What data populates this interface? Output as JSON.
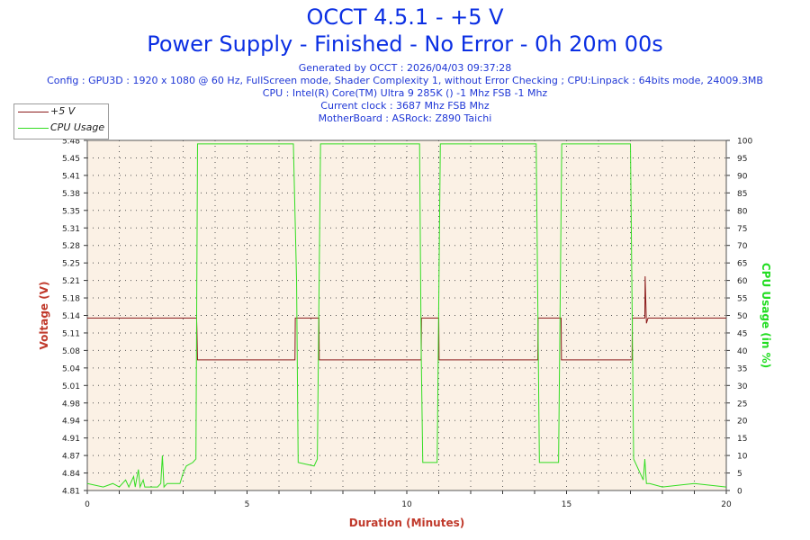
{
  "title_line1": "OCCT 4.5.1 - +5 V",
  "title_line2": "Power Supply - Finished - No Error - 0h 20m 00s",
  "info": {
    "generated": "Generated by OCCT : 2026/04/03 09:37:28",
    "config": "Config : GPU3D : 1920 x 1080 @ 60 Hz, FullScreen mode, Shader Complexity 1, without Error Checking ; CPU:Linpack : 64bits mode, 24009.3MB",
    "cpu": "CPU : Intel(R) Core(TM) Ultra 9 285K () -1 Mhz FSB -1 Mhz",
    "clock": "Current clock : 3687 Mhz FSB  Mhz",
    "motherboard": "MotherBoard : ASRock: Z890 Taichi"
  },
  "colors": {
    "voltage": "#8b1a1a",
    "cpu": "#33dd22",
    "axis_title": "#c0392b",
    "cpu_axis_title": "#22dd22",
    "plot_bg": "#fbf1e5",
    "grid": "#555555"
  },
  "chart_data": {
    "type": "line",
    "xlabel": "Duration (Minutes)",
    "ylabel": "Voltage (V)",
    "y2label": "CPU Usage (in %)",
    "xlim": [
      0,
      20
    ],
    "ylim": [
      4.81,
      5.48
    ],
    "y2lim": [
      0,
      100
    ],
    "x_ticks": [
      "0",
      "5",
      "10",
      "15",
      "20"
    ],
    "y_ticks": [
      "4.81",
      "4.84",
      "4.87",
      "4.91",
      "4.94",
      "4.98",
      "5.01",
      "5.04",
      "5.08",
      "5.11",
      "5.14",
      "5.18",
      "5.21",
      "5.25",
      "5.28",
      "5.31",
      "5.35",
      "5.38",
      "5.41",
      "5.45",
      "5.48"
    ],
    "y2_ticks": [
      "0",
      "5",
      "10",
      "15",
      "20",
      "25",
      "30",
      "35",
      "40",
      "45",
      "50",
      "55",
      "60",
      "65",
      "70",
      "75",
      "80",
      "85",
      "90",
      "95",
      "100"
    ],
    "grid": true,
    "legend": "top-left",
    "series": [
      {
        "name": "+5 V",
        "axis": "left",
        "x": [
          0,
          3.42,
          3.43,
          3.45,
          6.5,
          6.51,
          7.25,
          7.26,
          10.45,
          10.46,
          11.0,
          11.01,
          14.1,
          14.11,
          14.83,
          14.84,
          17.05,
          17.06,
          17.45,
          17.46,
          17.5,
          17.55,
          20
        ],
        "y": [
          5.14,
          5.14,
          5.12,
          5.06,
          5.06,
          5.14,
          5.14,
          5.06,
          5.06,
          5.14,
          5.14,
          5.06,
          5.06,
          5.14,
          5.14,
          5.06,
          5.06,
          5.14,
          5.14,
          5.22,
          5.13,
          5.14,
          5.14
        ]
      },
      {
        "name": "CPU Usage",
        "axis": "right",
        "x": [
          0,
          0.5,
          0.8,
          1.0,
          1.2,
          1.3,
          1.45,
          1.5,
          1.6,
          1.65,
          1.75,
          1.8,
          2.2,
          2.3,
          2.35,
          2.4,
          2.5,
          2.9,
          3.0,
          3.1,
          3.3,
          3.4,
          3.45,
          6.45,
          6.55,
          6.6,
          7.1,
          7.2,
          7.3,
          10.4,
          10.45,
          10.5,
          10.95,
          11.05,
          14.05,
          14.15,
          14.75,
          14.85,
          17.0,
          17.1,
          17.4,
          17.45,
          17.5,
          17.6,
          18.0,
          19.0,
          20
        ],
        "y": [
          2,
          1,
          2,
          1,
          3,
          1,
          4,
          1,
          6,
          1,
          3,
          1,
          1,
          2,
          10,
          1,
          2,
          2,
          5,
          7,
          8,
          9,
          99,
          99,
          60,
          8,
          7,
          9,
          99,
          99,
          40,
          8,
          8,
          99,
          99,
          8,
          8,
          99,
          99,
          9,
          3,
          9,
          2,
          2,
          1,
          2,
          1
        ]
      }
    ]
  }
}
